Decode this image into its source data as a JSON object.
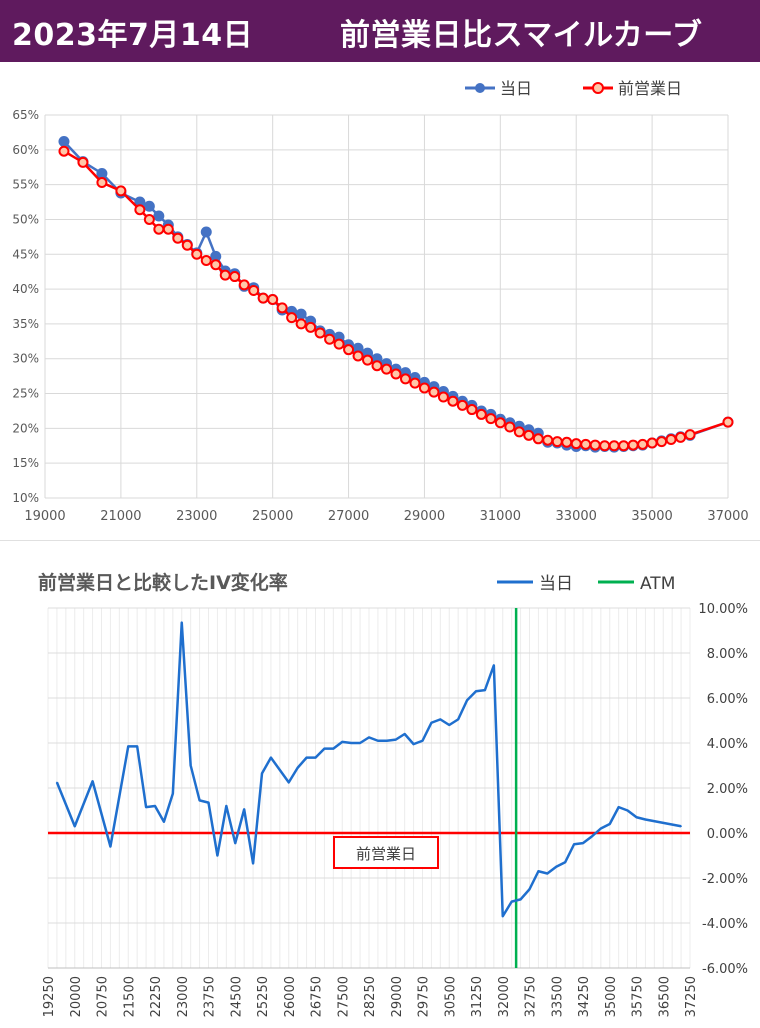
{
  "header": {
    "date": "2023年7月14日",
    "title": "前営業日比スマイルカーブ"
  },
  "colors": {
    "header_bg": "#5f1a5e",
    "today": "#4472c4",
    "prev": "#ff0000",
    "atm": "#00b050",
    "change_line": "#1f6fce"
  },
  "chart_data": [
    {
      "type": "line",
      "title": "",
      "xlim": [
        19000,
        37000
      ],
      "ylim": [
        10,
        65
      ],
      "x_ticks": [
        "19000",
        "21000",
        "23000",
        "25000",
        "27000",
        "29000",
        "31000",
        "33000",
        "35000",
        "37000"
      ],
      "y_ticks": [
        "10%",
        "15%",
        "20%",
        "25%",
        "30%",
        "35%",
        "40%",
        "45%",
        "50%",
        "55%",
        "60%",
        "65%"
      ],
      "grid": true,
      "legend": "top-right",
      "series": [
        {
          "name": "当日",
          "x": [
            19500,
            20000,
            20500,
            21000,
            21500,
            21750,
            22000,
            22250,
            22500,
            22750,
            23000,
            23250,
            23500,
            23750,
            24000,
            24250,
            24500,
            24750,
            25000,
            25250,
            25500,
            25750,
            26000,
            26250,
            26500,
            26750,
            27000,
            27250,
            27500,
            27750,
            28000,
            28250,
            28500,
            28750,
            29000,
            29250,
            29500,
            29750,
            30000,
            30250,
            30500,
            30750,
            31000,
            31250,
            31500,
            31750,
            32000,
            32250,
            32500,
            32750,
            33000,
            33250,
            33500,
            33750,
            34000,
            34250,
            34500,
            34750,
            35000,
            35250,
            35500,
            35750,
            36000,
            37000
          ],
          "y": [
            61.2,
            58.3,
            56.6,
            53.8,
            52.5,
            51.9,
            50.5,
            49.2,
            47.5,
            46.4,
            45.2,
            48.2,
            44.7,
            42.6,
            42.2,
            40.4,
            40.2,
            38.7,
            38.5,
            37.0,
            36.8,
            36.4,
            35.4,
            34.0,
            33.5,
            33.1,
            32.0,
            31.5,
            30.8,
            30.0,
            29.3,
            28.5,
            28.0,
            27.3,
            26.6,
            26.0,
            25.3,
            24.6,
            23.9,
            23.3,
            22.5,
            22.0,
            21.3,
            20.8,
            20.3,
            19.8,
            19.3,
            18.0,
            17.9,
            17.6,
            17.4,
            17.5,
            17.3,
            17.4,
            17.3,
            17.4,
            17.5,
            17.6,
            17.9,
            18.2,
            18.5,
            18.8,
            19.0,
            20.9
          ]
        },
        {
          "name": "前営業日",
          "x": [
            19500,
            20000,
            20500,
            21000,
            21500,
            21750,
            22000,
            22250,
            22500,
            22750,
            23000,
            23250,
            23500,
            23750,
            24000,
            24250,
            24500,
            24750,
            25000,
            25250,
            25500,
            25750,
            26000,
            26250,
            26500,
            26750,
            27000,
            27250,
            27500,
            27750,
            28000,
            28250,
            28500,
            28750,
            29000,
            29250,
            29500,
            29750,
            30000,
            30250,
            30500,
            30750,
            31000,
            31250,
            31500,
            31750,
            32000,
            32250,
            32500,
            32750,
            33000,
            33250,
            33500,
            33750,
            34000,
            34250,
            34500,
            34750,
            35000,
            35250,
            35500,
            35750,
            36000,
            37000
          ],
          "y": [
            59.8,
            58.2,
            55.3,
            54.1,
            51.4,
            50.0,
            48.6,
            48.6,
            47.3,
            46.3,
            45.0,
            44.1,
            43.5,
            42.0,
            41.8,
            40.6,
            39.8,
            38.7,
            38.5,
            37.3,
            35.9,
            35.0,
            34.5,
            33.7,
            32.8,
            32.1,
            31.3,
            30.4,
            29.8,
            29.0,
            28.5,
            27.8,
            27.1,
            26.5,
            25.8,
            25.2,
            24.5,
            23.9,
            23.3,
            22.7,
            22.0,
            21.4,
            20.8,
            20.2,
            19.5,
            19.0,
            18.5,
            18.3,
            18.1,
            18.0,
            17.8,
            17.7,
            17.6,
            17.5,
            17.5,
            17.5,
            17.6,
            17.7,
            17.9,
            18.1,
            18.4,
            18.7,
            19.1,
            20.9
          ]
        }
      ]
    },
    {
      "type": "line",
      "title": "前営業日と比較したIV変化率",
      "x_ticks": [
        "19250",
        "20000",
        "20750",
        "21500",
        "22250",
        "23000",
        "23750",
        "24500",
        "25250",
        "26000",
        "26750",
        "27500",
        "28250",
        "29000",
        "29750",
        "30500",
        "31250",
        "32000",
        "32750",
        "33500",
        "34250",
        "35000",
        "35750",
        "36500",
        "37250"
      ],
      "y_ticks": [
        "-6.00%",
        "-4.00%",
        "-2.00%",
        "0.00%",
        "2.00%",
        "4.00%",
        "6.00%",
        "8.00%",
        "10.00%"
      ],
      "xlim": [
        19250,
        37250
      ],
      "ylim": [
        -6,
        10
      ],
      "grid": true,
      "legend": "top-right",
      "atm_x": 32375,
      "reference_label": "前営業日",
      "series": [
        {
          "name": "当日",
          "x": [
            19500,
            20000,
            20500,
            21000,
            21500,
            21750,
            22000,
            22250,
            22500,
            22750,
            23000,
            23250,
            23500,
            23750,
            24000,
            24250,
            24500,
            24750,
            25000,
            25250,
            25500,
            25750,
            26000,
            26250,
            26500,
            26750,
            27000,
            27250,
            27500,
            27750,
            28000,
            28250,
            28500,
            28750,
            29000,
            29250,
            29500,
            29750,
            30000,
            30250,
            30500,
            30750,
            31000,
            31250,
            31500,
            31750,
            32000,
            32250,
            32500,
            32750,
            33000,
            33250,
            33500,
            33750,
            34000,
            34250,
            34500,
            34750,
            35000,
            35250,
            35500,
            35750,
            36000,
            37000
          ],
          "y": [
            2.25,
            0.3,
            2.3,
            -0.6,
            3.85,
            3.85,
            1.15,
            1.2,
            0.5,
            1.75,
            9.35,
            3.0,
            1.45,
            1.35,
            -1.0,
            1.2,
            -0.45,
            1.05,
            -1.35,
            2.65,
            3.35,
            2.8,
            2.25,
            2.9,
            3.35,
            3.35,
            3.75,
            3.75,
            4.05,
            4.0,
            4.0,
            4.25,
            4.1,
            4.1,
            4.15,
            4.4,
            3.95,
            4.1,
            4.9,
            5.05,
            4.8,
            5.05,
            5.9,
            6.3,
            6.35,
            7.45,
            -3.7,
            -3.05,
            -2.95,
            -2.5,
            -1.7,
            -1.8,
            -1.5,
            -1.3,
            -0.5,
            -0.45,
            -0.15,
            0.2,
            0.4,
            1.15,
            1.0,
            0.7,
            0.6,
            0.3
          ]
        },
        {
          "name": "ATM"
        }
      ]
    }
  ]
}
